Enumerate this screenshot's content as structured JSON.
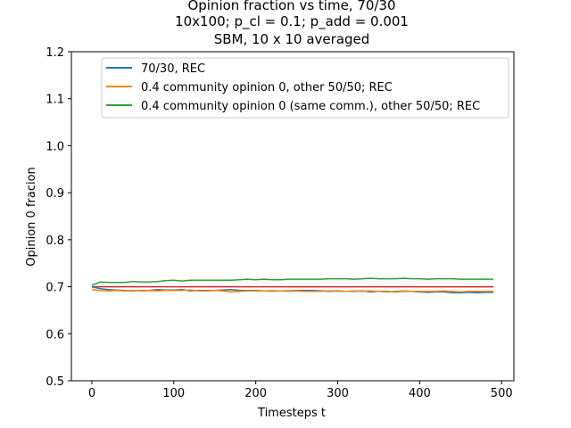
{
  "chart_data": {
    "type": "line",
    "title_lines": [
      "Opinion fraction vs time, 70/30",
      "10x100; p_cl = 0.1; p_add = 0.001",
      "SBM, 10 x 10 averaged"
    ],
    "xlabel": "Timesteps t",
    "ylabel": "Opinion 0 fracion",
    "xlim": [
      -25,
      515
    ],
    "ylim": [
      0.5,
      1.2
    ],
    "xticks": [
      0,
      100,
      200,
      300,
      400,
      500
    ],
    "yticks": [
      0.5,
      0.6,
      0.7,
      0.8,
      0.9,
      1.0,
      1.1,
      1.2
    ],
    "grid": false,
    "legend_position": "upper center",
    "reference_line": {
      "y": 0.7,
      "x_range": [
        0,
        490
      ],
      "color": "#d62728"
    },
    "series": [
      {
        "name": "70/30, REC",
        "color": "#1f77b4",
        "x": [
          0,
          10,
          20,
          30,
          40,
          50,
          60,
          70,
          80,
          90,
          100,
          110,
          120,
          130,
          140,
          150,
          160,
          170,
          180,
          190,
          200,
          210,
          220,
          230,
          240,
          250,
          260,
          270,
          280,
          290,
          300,
          310,
          320,
          330,
          340,
          350,
          360,
          370,
          380,
          390,
          400,
          410,
          420,
          430,
          440,
          450,
          460,
          470,
          480,
          490
        ],
        "y": [
          0.7,
          0.696,
          0.694,
          0.693,
          0.692,
          0.691,
          0.692,
          0.692,
          0.694,
          0.693,
          0.693,
          0.694,
          0.691,
          0.692,
          0.692,
          0.692,
          0.693,
          0.694,
          0.692,
          0.692,
          0.692,
          0.691,
          0.691,
          0.691,
          0.691,
          0.692,
          0.692,
          0.692,
          0.691,
          0.69,
          0.691,
          0.69,
          0.69,
          0.691,
          0.689,
          0.69,
          0.69,
          0.689,
          0.69,
          0.69,
          0.689,
          0.688,
          0.689,
          0.689,
          0.687,
          0.687,
          0.688,
          0.687,
          0.688,
          0.688
        ]
      },
      {
        "name": "0.4 community opinion 0, other 50/50; REC",
        "color": "#ff7f0e",
        "x": [
          0,
          10,
          20,
          30,
          40,
          50,
          60,
          70,
          80,
          90,
          100,
          110,
          120,
          130,
          140,
          150,
          160,
          170,
          180,
          190,
          200,
          210,
          220,
          230,
          240,
          250,
          260,
          270,
          280,
          290,
          300,
          310,
          320,
          330,
          340,
          350,
          360,
          370,
          380,
          390,
          400,
          410,
          420,
          430,
          440,
          450,
          460,
          470,
          480,
          490
        ],
        "y": [
          0.694,
          0.692,
          0.691,
          0.692,
          0.691,
          0.692,
          0.691,
          0.692,
          0.691,
          0.692,
          0.692,
          0.692,
          0.693,
          0.691,
          0.691,
          0.692,
          0.691,
          0.689,
          0.69,
          0.691,
          0.691,
          0.691,
          0.69,
          0.691,
          0.69,
          0.691,
          0.69,
          0.69,
          0.69,
          0.691,
          0.69,
          0.69,
          0.691,
          0.69,
          0.691,
          0.69,
          0.689,
          0.69,
          0.691,
          0.69,
          0.69,
          0.69,
          0.69,
          0.691,
          0.69,
          0.689,
          0.69,
          0.69,
          0.69,
          0.69
        ]
      },
      {
        "name": "0.4 community opinion 0 (same comm.), other 50/50; REC",
        "color": "#2ca02c",
        "x": [
          0,
          10,
          20,
          30,
          40,
          50,
          60,
          70,
          80,
          90,
          100,
          110,
          120,
          130,
          140,
          150,
          160,
          170,
          180,
          190,
          200,
          210,
          220,
          230,
          240,
          250,
          260,
          270,
          280,
          290,
          300,
          310,
          320,
          330,
          340,
          350,
          360,
          370,
          380,
          390,
          400,
          410,
          420,
          430,
          440,
          450,
          460,
          470,
          480,
          490
        ],
        "y": [
          0.703,
          0.71,
          0.709,
          0.709,
          0.709,
          0.711,
          0.71,
          0.71,
          0.711,
          0.713,
          0.714,
          0.712,
          0.714,
          0.714,
          0.714,
          0.714,
          0.714,
          0.714,
          0.715,
          0.716,
          0.715,
          0.716,
          0.715,
          0.715,
          0.716,
          0.716,
          0.716,
          0.716,
          0.716,
          0.717,
          0.717,
          0.717,
          0.716,
          0.717,
          0.718,
          0.717,
          0.717,
          0.717,
          0.718,
          0.717,
          0.717,
          0.716,
          0.717,
          0.717,
          0.717,
          0.716,
          0.716,
          0.716,
          0.716,
          0.716
        ]
      }
    ]
  }
}
